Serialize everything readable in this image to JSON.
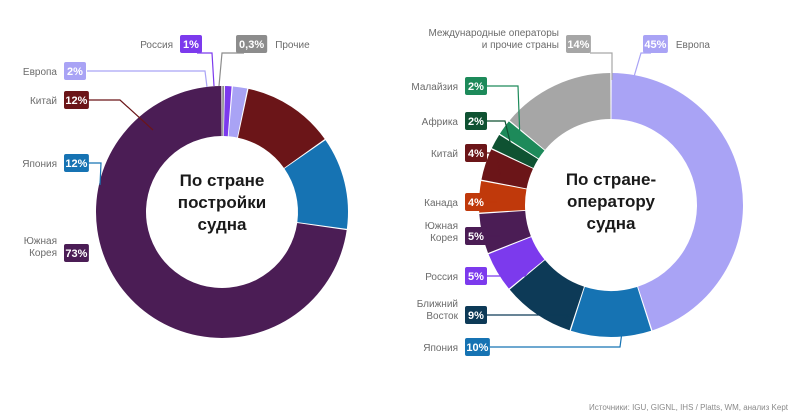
{
  "colors": {
    "yuzhnaya_koreya": "#4b1d55",
    "yaponiya": "#1673b3",
    "kitay": "#6b1518",
    "evropa": "#a9a3f5",
    "rossiya": "#7c3aed",
    "prochie": "#8c8c8c",
    "mezhdunarodnye": "#a6a6a6",
    "malayziya": "#1d8a5a",
    "afrika": "#0f5232",
    "kanada": "#c0390b",
    "blizhniy_vostok": "#0d3a57",
    "gray_text": "#6b6b6b",
    "background": "#ffffff"
  },
  "chart_data": [
    {
      "type": "pie",
      "donut": true,
      "center_title": [
        "По стране",
        "постройки",
        "судна"
      ],
      "slices": [
        {
          "label": "Южная\nКорея",
          "value": 73,
          "value_text": "73%",
          "color": "#4b1d55"
        },
        {
          "label": "Япония",
          "value": 12,
          "value_text": "12%",
          "color": "#1673b3"
        },
        {
          "label": "Китай",
          "value": 12,
          "value_text": "12%",
          "color": "#6b1518"
        },
        {
          "label": "Европа",
          "value": 2,
          "value_text": "2%",
          "color": "#a9a3f5"
        },
        {
          "label": "Россия",
          "value": 1,
          "value_text": "1%",
          "color": "#7c3aed"
        },
        {
          "label": "Прочие",
          "value": 0.3,
          "value_text": "0,3%",
          "color": "#8c8c8c"
        }
      ]
    },
    {
      "type": "pie",
      "donut": true,
      "center_title": [
        "По стране-",
        "оператору",
        "судна"
      ],
      "slices": [
        {
          "label": "Европа",
          "value": 45,
          "value_text": "45%",
          "color": "#a9a3f5"
        },
        {
          "label": "Япония",
          "value": 10,
          "value_text": "10%",
          "color": "#1673b3"
        },
        {
          "label": "Ближний\nВосток",
          "value": 9,
          "value_text": "9%",
          "color": "#0d3a57"
        },
        {
          "label": "Россия",
          "value": 5,
          "value_text": "5%",
          "color": "#7c3aed"
        },
        {
          "label": "Южная\nКорея",
          "value": 5,
          "value_text": "5%",
          "color": "#4b1d55"
        },
        {
          "label": "Канада",
          "value": 4,
          "value_text": "4%",
          "color": "#c0390b"
        },
        {
          "label": "Китай",
          "value": 4,
          "value_text": "4%",
          "color": "#6b1518"
        },
        {
          "label": "Африка",
          "value": 2,
          "value_text": "2%",
          "color": "#0f5232"
        },
        {
          "label": "Малайзия",
          "value": 2,
          "value_text": "2%",
          "color": "#1d8a5a"
        },
        {
          "label": "Международные операторы\nи прочие страны",
          "value": 14,
          "value_text": "14%",
          "color": "#a6a6a6"
        }
      ]
    }
  ],
  "source": "Источники: IGU, GIGNL, IHS / Platts, WM, анализ Kept"
}
